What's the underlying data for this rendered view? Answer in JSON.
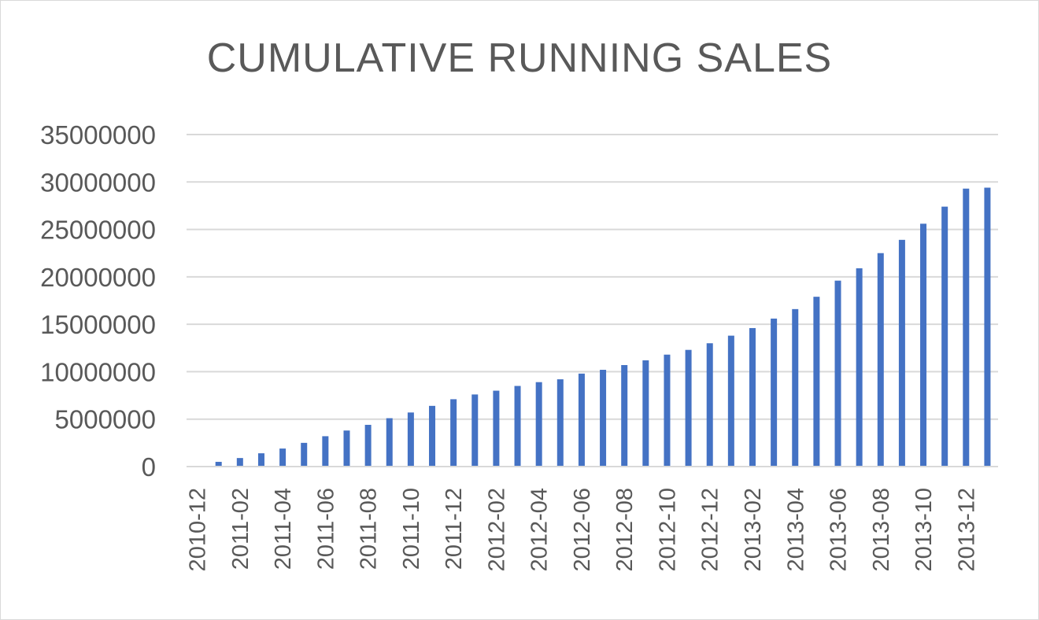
{
  "chart_data": {
    "type": "bar",
    "title": "CUMULATIVE RUNNING SALES",
    "xlabel": "",
    "ylabel": "",
    "ylim": [
      0,
      35000000
    ],
    "y_ticks": [
      0,
      5000000,
      10000000,
      15000000,
      20000000,
      25000000,
      30000000,
      35000000
    ],
    "grid": true,
    "legend": "none",
    "bar_color": "#4472c4",
    "categories": [
      "2010-12",
      "2011-01",
      "2011-02",
      "2011-03",
      "2011-04",
      "2011-05",
      "2011-06",
      "2011-07",
      "2011-08",
      "2011-09",
      "2011-10",
      "2011-11",
      "2011-12",
      "2012-01",
      "2012-02",
      "2012-03",
      "2012-04",
      "2012-05",
      "2012-06",
      "2012-07",
      "2012-08",
      "2012-09",
      "2012-10",
      "2012-11",
      "2012-12",
      "2013-01",
      "2013-02",
      "2013-03",
      "2013-04",
      "2013-05",
      "2013-06",
      "2013-07",
      "2013-08",
      "2013-09",
      "2013-10",
      "2013-11",
      "2013-12",
      "2014-01"
    ],
    "x_tick_labels": [
      "2010-12",
      "2011-02",
      "2011-04",
      "2011-06",
      "2011-08",
      "2011-10",
      "2011-12",
      "2012-02",
      "2012-04",
      "2012-06",
      "2012-08",
      "2012-10",
      "2012-12",
      "2013-02",
      "2013-04",
      "2013-06",
      "2013-08",
      "2013-10",
      "2013-12"
    ],
    "values": [
      20000,
      500000,
      900000,
      1400000,
      1900000,
      2500000,
      3200000,
      3800000,
      4400000,
      5100000,
      5700000,
      6400000,
      7100000,
      7600000,
      8000000,
      8500000,
      8900000,
      9200000,
      9800000,
      10200000,
      10700000,
      11200000,
      11800000,
      12300000,
      13000000,
      13800000,
      14600000,
      15600000,
      16600000,
      17900000,
      19600000,
      20900000,
      22500000,
      23900000,
      25600000,
      27400000,
      29300000,
      29400000
    ]
  }
}
